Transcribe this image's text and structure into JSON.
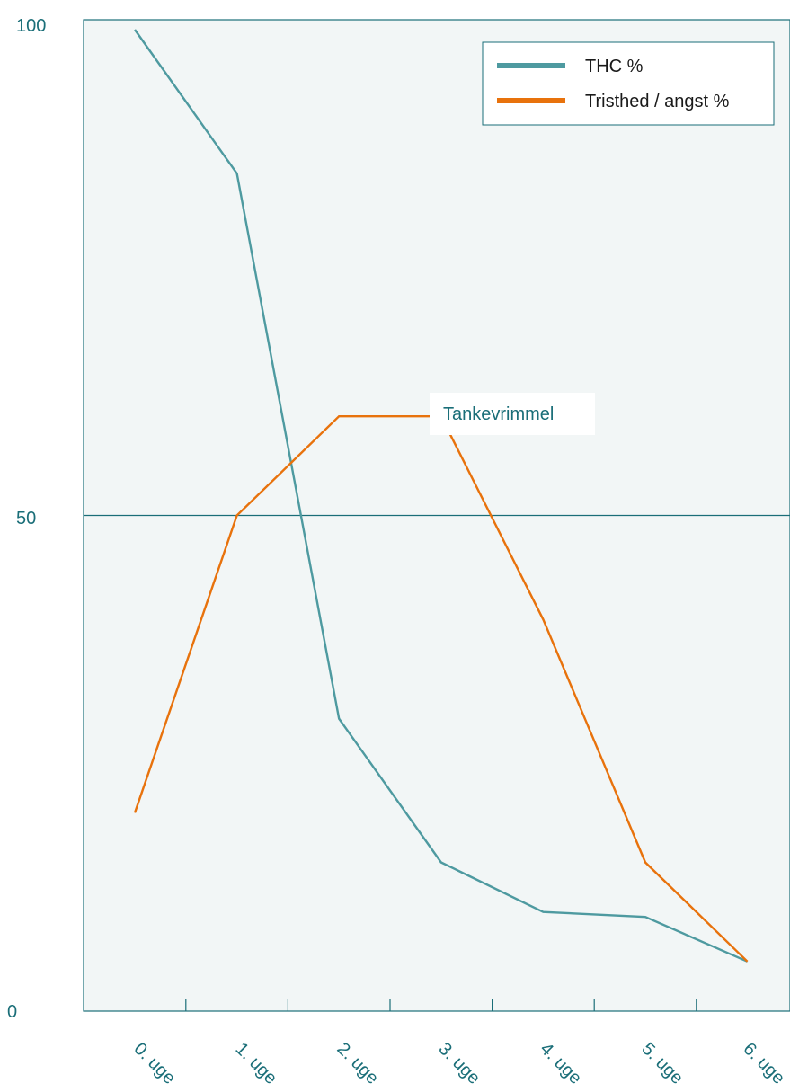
{
  "chart_data": {
    "type": "line",
    "categories": [
      "0. uge",
      "1. uge",
      "2. uge",
      "3. uge",
      "4. uge",
      "5. uge",
      "6. uge"
    ],
    "series": [
      {
        "name": "THC %",
        "color": "#4e9aa0",
        "values": [
          99,
          84.5,
          29.5,
          15,
          10,
          9.5,
          5
        ]
      },
      {
        "name": "Tristhed / angst %",
        "color": "#e8720c",
        "values": [
          20,
          50,
          60,
          60,
          39.5,
          15,
          5
        ]
      }
    ],
    "ylim": [
      0,
      100
    ],
    "yticks": [
      "0",
      "50",
      "100"
    ],
    "reference_line": 50,
    "annotation": {
      "text": "Tankevrimmel",
      "category": "3. uge",
      "value": 60
    },
    "legend_position": "top-right",
    "colors": {
      "axis": "#1a6e78",
      "plot_bg": "#f2f6f6"
    }
  }
}
